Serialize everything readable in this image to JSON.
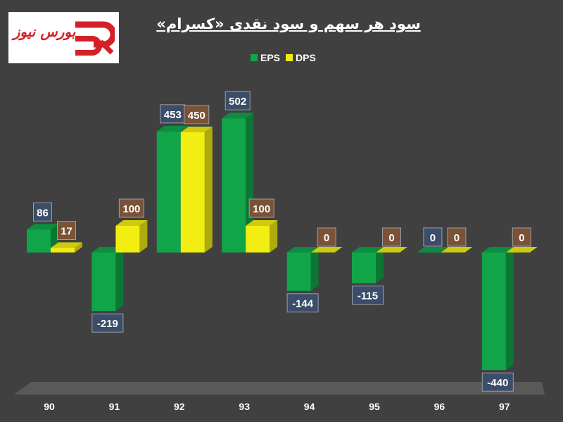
{
  "logo": {
    "text": "بورس نیوز"
  },
  "chart_data": {
    "type": "bar",
    "title": "سود هر سهم و سود نقدی «کسرام»",
    "categories": [
      "90",
      "91",
      "92",
      "93",
      "94",
      "95",
      "96",
      "97"
    ],
    "series": [
      {
        "name": "EPS",
        "values": [
          86,
          -219,
          453,
          502,
          -144,
          -115,
          0,
          -440
        ],
        "color": "#11a54a"
      },
      {
        "name": "DPS",
        "values": [
          17,
          100,
          450,
          100,
          0,
          0,
          0,
          0
        ],
        "color": "#f2ee12"
      }
    ],
    "ylim": [
      -440,
      520
    ],
    "legend_position": "top",
    "grid": false,
    "label_box_colors": {
      "EPS": "#3b4d68",
      "DPS": "#7a5236"
    }
  }
}
